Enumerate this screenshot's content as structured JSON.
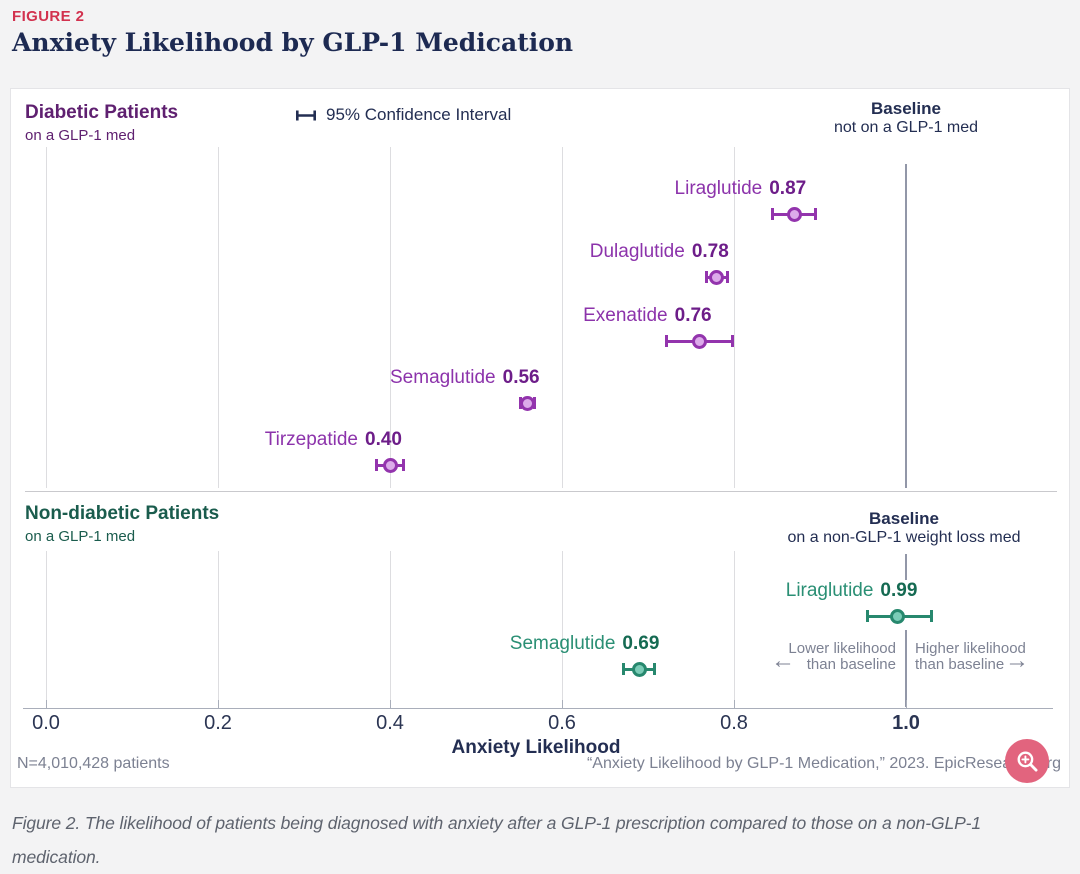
{
  "figure_label": "FIGURE 2",
  "title": "Anxiety Likelihood by GLP-1 Medication",
  "colors": {
    "figure_label_red": "#d2314e",
    "title_navy": "#1d2a52",
    "baseline_line": "#9297a8",
    "gridline": "#dddde0",
    "zoom_button_pink": "#e2647e",
    "diabetic_purple": "#8c33ab",
    "nondiabetic_teal": "#2a8f74"
  },
  "chart_data": {
    "type": "scatter",
    "subtype": "dot-plot-with-confidence-intervals",
    "title": "Anxiety Likelihood by GLP-1 Medication",
    "xlabel": "Anxiety Likelihood",
    "xlim": [
      0.0,
      1.19
    ],
    "xticks": [
      "0.0",
      "0.2",
      "0.4",
      "0.6",
      "0.8",
      "1.0"
    ],
    "baseline_x": 1.0,
    "grid": true,
    "legend": {
      "label": "95% Confidence Interval",
      "position": "top-center"
    },
    "annotations": {
      "lower_label": "Lower likelihood than baseline",
      "higher_label": "Higher likelihood than baseline",
      "left_arrow": "←",
      "right_arrow": "→"
    },
    "series": [
      {
        "name": "Diabetic Patients",
        "subtitle": "on a GLP-1 med",
        "baseline_label": "Baseline",
        "baseline_sublabel": "not on a GLP-1 med",
        "color": "#8c33ab",
        "value_color": "#6d1d89",
        "marker_stroke": "#9334ad",
        "marker_fill": "#dcabea",
        "points": [
          {
            "label": "Liraglutide",
            "value": 0.87,
            "value_label": "0.87",
            "ci_low": 0.845,
            "ci_high": 0.895
          },
          {
            "label": "Dulaglutide",
            "value": 0.78,
            "value_label": "0.78",
            "ci_low": 0.768,
            "ci_high": 0.792
          },
          {
            "label": "Exenatide",
            "value": 0.76,
            "value_label": "0.76",
            "ci_low": 0.722,
            "ci_high": 0.798
          },
          {
            "label": "Semaglutide",
            "value": 0.56,
            "value_label": "0.56",
            "ci_low": 0.552,
            "ci_high": 0.568
          },
          {
            "label": "Tirzepatide",
            "value": 0.4,
            "value_label": "0.40",
            "ci_low": 0.384,
            "ci_high": 0.416
          }
        ]
      },
      {
        "name": "Non-diabetic Patients",
        "subtitle": "on a GLP-1 med",
        "baseline_label": "Baseline",
        "baseline_sublabel": "on a non-GLP-1 weight loss med",
        "color": "#2a8f74",
        "value_color": "#156a52",
        "marker_stroke": "#27886e",
        "marker_fill": "#7bccb7",
        "points": [
          {
            "label": "Liraglutide",
            "value": 0.99,
            "value_label": "0.99",
            "ci_low": 0.955,
            "ci_high": 1.03
          },
          {
            "label": "Semaglutide",
            "value": 0.69,
            "value_label": "0.69",
            "ci_low": 0.672,
            "ci_high": 0.708
          }
        ]
      }
    ]
  },
  "footer": {
    "n_label": "N=4,010,428 patients",
    "attribution": "“Anxiety Likelihood by GLP-1 Medication,” 2023. EpicResearch.org"
  },
  "zoom_button": {
    "icon": "zoom-in-magnifier"
  },
  "caption": "Figure 2. The likelihood of patients being diagnosed with anxiety after a GLP-1 prescription compared to those on a non-GLP-1 medication."
}
